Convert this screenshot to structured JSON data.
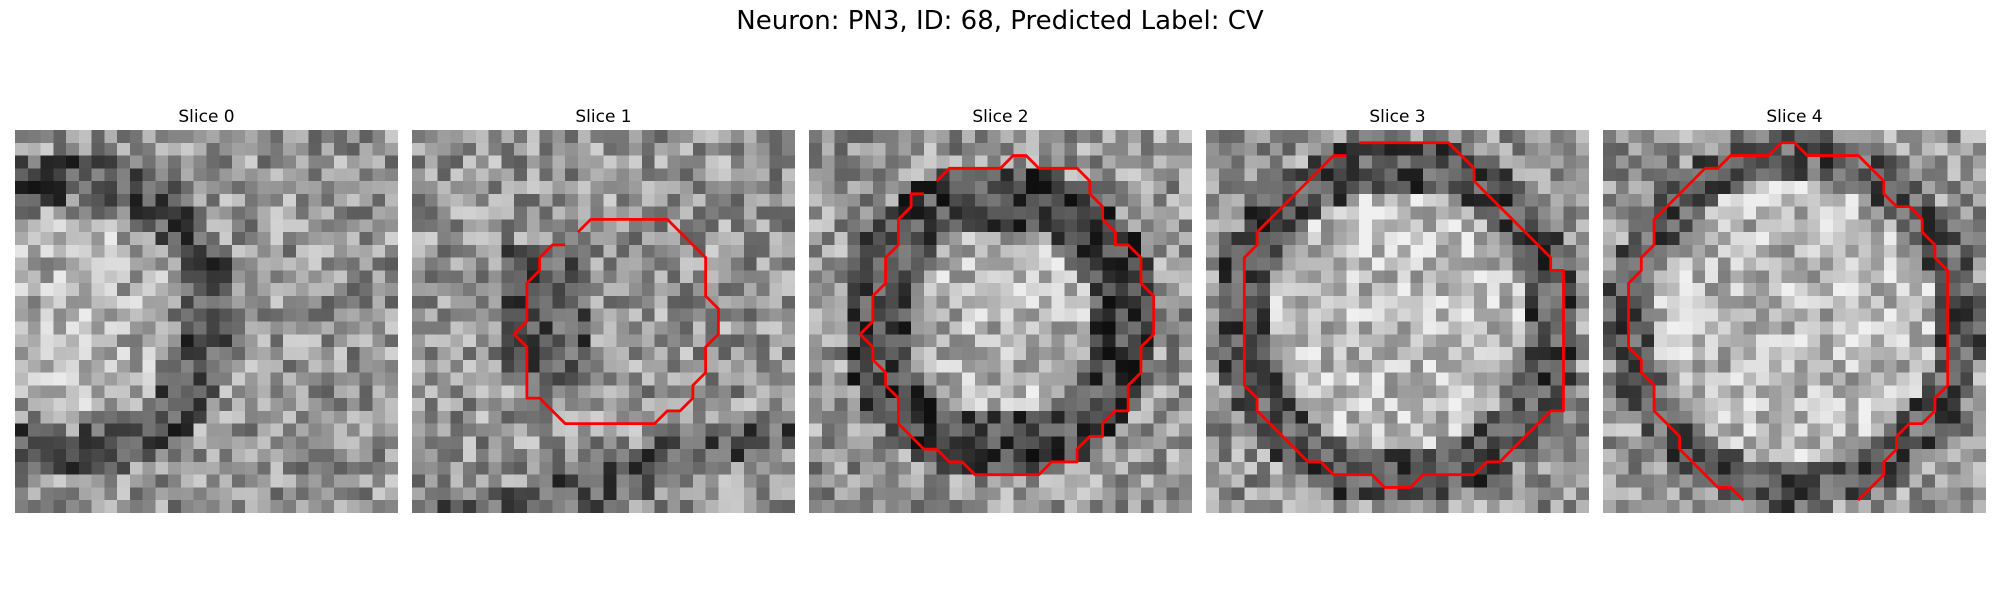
{
  "figure": {
    "title": "Neuron: PN3, ID: 68, Predicted Label: CV",
    "contour_color": "#ff0000",
    "grid": 30,
    "panels": [
      {
        "title": "Slice 0",
        "seed": 11,
        "contour": null
      },
      {
        "title": "Slice 1",
        "seed": 23,
        "contour": [
          [
            13,
            8
          ],
          [
            14,
            7
          ],
          [
            20,
            7
          ],
          [
            23,
            10
          ],
          [
            23,
            13
          ],
          [
            24,
            14
          ],
          [
            24,
            16
          ],
          [
            23,
            17
          ],
          [
            23,
            19
          ],
          [
            22,
            20
          ],
          [
            22,
            21
          ],
          [
            21,
            22
          ],
          [
            20,
            22
          ],
          [
            19,
            23
          ],
          [
            12,
            23
          ],
          [
            10,
            21
          ],
          [
            9,
            21
          ],
          [
            9,
            17
          ],
          [
            8,
            16
          ],
          [
            9,
            15
          ],
          [
            9,
            12
          ],
          [
            10,
            11
          ],
          [
            10,
            10
          ],
          [
            11,
            9
          ],
          [
            12,
            9
          ]
        ]
      },
      {
        "title": "Slice 2",
        "seed": 37,
        "contour": [
          [
            10,
            4
          ],
          [
            11,
            3
          ],
          [
            15,
            3
          ],
          [
            16,
            2
          ],
          [
            17,
            2
          ],
          [
            18,
            3
          ],
          [
            21,
            3
          ],
          [
            22,
            4
          ],
          [
            22,
            5
          ],
          [
            23,
            6
          ],
          [
            23,
            7
          ],
          [
            24,
            8
          ],
          [
            24,
            9
          ],
          [
            25,
            9
          ],
          [
            26,
            10
          ],
          [
            26,
            12
          ],
          [
            27,
            13
          ],
          [
            27,
            16
          ],
          [
            26,
            17
          ],
          [
            26,
            19
          ],
          [
            25,
            20
          ],
          [
            25,
            22
          ],
          [
            24,
            22
          ],
          [
            23,
            23
          ],
          [
            23,
            24
          ],
          [
            22,
            24
          ],
          [
            21,
            25
          ],
          [
            21,
            26
          ],
          [
            19,
            26
          ],
          [
            18,
            27
          ],
          [
            13,
            27
          ],
          [
            12,
            26
          ],
          [
            11,
            26
          ],
          [
            10,
            25
          ],
          [
            9,
            25
          ],
          [
            8,
            24
          ],
          [
            7,
            23
          ],
          [
            7,
            21
          ],
          [
            6,
            20
          ],
          [
            6,
            19
          ],
          [
            5,
            18
          ],
          [
            5,
            17
          ],
          [
            4,
            16
          ],
          [
            5,
            15
          ],
          [
            5,
            14
          ],
          [
            5,
            13
          ],
          [
            6,
            12
          ],
          [
            6,
            10
          ],
          [
            7,
            9
          ],
          [
            7,
            7
          ],
          [
            8,
            6
          ],
          [
            8,
            5
          ],
          [
            9,
            5
          ]
        ]
      },
      {
        "title": "Slice 3",
        "seed": 53,
        "contour": [
          [
            12,
            1
          ],
          [
            19,
            1
          ],
          [
            20,
            2
          ],
          [
            21,
            3
          ],
          [
            21,
            4
          ],
          [
            22,
            5
          ],
          [
            23,
            6
          ],
          [
            24,
            7
          ],
          [
            25,
            8
          ],
          [
            26,
            9
          ],
          [
            27,
            10
          ],
          [
            27,
            11
          ],
          [
            28,
            11
          ],
          [
            28,
            22
          ],
          [
            27,
            22
          ],
          [
            26,
            23
          ],
          [
            25,
            24
          ],
          [
            24,
            25
          ],
          [
            23,
            26
          ],
          [
            22,
            26
          ],
          [
            21,
            27
          ],
          [
            17,
            27
          ],
          [
            16,
            28
          ],
          [
            14,
            28
          ],
          [
            13,
            27
          ],
          [
            10,
            27
          ],
          [
            9,
            26
          ],
          [
            8,
            26
          ],
          [
            7,
            25
          ],
          [
            6,
            24
          ],
          [
            5,
            23
          ],
          [
            4,
            22
          ],
          [
            4,
            21
          ],
          [
            3,
            20
          ],
          [
            3,
            10
          ],
          [
            4,
            9
          ],
          [
            4,
            8
          ],
          [
            5,
            7
          ],
          [
            6,
            6
          ],
          [
            7,
            5
          ],
          [
            8,
            4
          ],
          [
            9,
            3
          ],
          [
            10,
            2
          ],
          [
            11,
            2
          ]
        ]
      },
      {
        "title": "Slice 4",
        "seed": 71,
        "contour": [
          [
            11,
            29
          ],
          [
            10,
            28
          ],
          [
            9,
            28
          ],
          [
            8,
            27
          ],
          [
            7,
            26
          ],
          [
            6,
            25
          ],
          [
            6,
            24
          ],
          [
            5,
            23
          ],
          [
            4,
            22
          ],
          [
            4,
            20
          ],
          [
            3,
            19
          ],
          [
            3,
            18
          ],
          [
            2,
            17
          ],
          [
            2,
            12
          ],
          [
            3,
            11
          ],
          [
            3,
            10
          ],
          [
            4,
            9
          ],
          [
            4,
            7
          ],
          [
            5,
            6
          ],
          [
            6,
            5
          ],
          [
            7,
            4
          ],
          [
            8,
            3
          ],
          [
            9,
            3
          ],
          [
            10,
            2
          ],
          [
            13,
            2
          ],
          [
            14,
            1
          ],
          [
            15,
            1
          ],
          [
            16,
            2
          ],
          [
            20,
            2
          ],
          [
            21,
            3
          ],
          [
            22,
            4
          ],
          [
            22,
            5
          ],
          [
            23,
            6
          ],
          [
            24,
            6
          ],
          [
            25,
            7
          ],
          [
            25,
            8
          ],
          [
            26,
            9
          ],
          [
            26,
            10
          ],
          [
            27,
            11
          ],
          [
            27,
            20
          ],
          [
            26,
            21
          ],
          [
            26,
            22
          ],
          [
            25,
            23
          ],
          [
            24,
            23
          ],
          [
            23,
            24
          ],
          [
            23,
            25
          ],
          [
            22,
            26
          ],
          [
            22,
            27
          ],
          [
            21,
            28
          ],
          [
            20,
            29
          ]
        ]
      }
    ]
  }
}
